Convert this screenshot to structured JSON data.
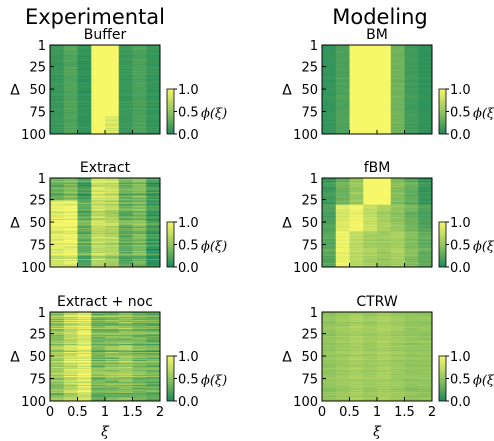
{
  "column_titles": [
    "Experimental",
    "Modeling"
  ],
  "colors": {
    "low": "#1e8a5a",
    "mid": "#93c55e",
    "high": "#f7f76a",
    "frame": "#000000"
  },
  "y_tick_labels": [
    "1",
    "25",
    "50",
    "75",
    "100"
  ],
  "y_axis_label": "Δ",
  "x_tick_labels": [
    "0",
    "0.5",
    "1",
    "1.5",
    "2"
  ],
  "x_axis_label": "ξ",
  "colorbar": {
    "tick_labels": [
      "1.0",
      "0.5",
      "0.0"
    ],
    "label": "ϕ(ξ)"
  },
  "chart_data": [
    {
      "type": "heatmap",
      "title": "Buffer",
      "x_bins": [
        0.125,
        0.375,
        0.625,
        0.875,
        1.125,
        1.375,
        1.625,
        1.875
      ],
      "xlim": [
        0,
        2
      ],
      "ylim": [
        1,
        100
      ],
      "clim": [
        0,
        1
      ],
      "bands": [
        {
          "rows": [
            1,
            100
          ],
          "values": [
            0.12,
            0.22,
            0.08,
            1.0,
            1.0,
            0.12,
            0.2,
            0.1
          ]
        }
      ],
      "features": "Bright columns near xi 0.5–1.25 with faint stripes near the bottom"
    },
    {
      "type": "heatmap",
      "title": "Extract",
      "x_bins": [
        0.125,
        0.375,
        0.625,
        0.875,
        1.125,
        1.375,
        1.625,
        1.875
      ],
      "xlim": [
        0,
        2
      ],
      "ylim": [
        1,
        100
      ],
      "clim": [
        0,
        1
      ],
      "bands": [
        {
          "rows": [
            1,
            25
          ],
          "values": [
            0.35,
            0.45,
            0.2,
            0.85,
            0.8,
            0.35,
            0.45,
            0.15
          ]
        },
        {
          "rows": [
            26,
            100
          ],
          "values": [
            0.9,
            0.95,
            0.3,
            0.7,
            0.65,
            0.3,
            0.4,
            0.12
          ]
        }
      ],
      "features": "Many horizontal stripes"
    },
    {
      "type": "heatmap",
      "title": "Extract + noc",
      "x_bins": [
        0.125,
        0.375,
        0.625,
        0.875,
        1.125,
        1.375,
        1.625,
        1.875
      ],
      "xlim": [
        0,
        2
      ],
      "ylim": [
        1,
        100
      ],
      "clim": [
        0,
        1
      ],
      "bands": [
        {
          "rows": [
            1,
            100
          ],
          "values": [
            0.55,
            0.75,
            0.9,
            0.4,
            0.45,
            0.5,
            0.4,
            0.35
          ]
        }
      ],
      "features": "Dense horizontal stripes"
    },
    {
      "type": "heatmap",
      "title": "BM",
      "x_bins": [
        0.125,
        0.375,
        0.625,
        0.875,
        1.125,
        1.375,
        1.625,
        1.875
      ],
      "xlim": [
        0,
        2
      ],
      "ylim": [
        1,
        100
      ],
      "clim": [
        0,
        1
      ],
      "bands": [
        {
          "rows": [
            1,
            100
          ],
          "values": [
            0.1,
            0.2,
            1.0,
            1.0,
            1.0,
            0.35,
            0.15,
            0.08
          ]
        }
      ],
      "features": "Wide bright band near xi 0.6–1.4"
    },
    {
      "type": "heatmap",
      "title": "fBM",
      "x_bins": [
        0.125,
        0.375,
        0.625,
        0.875,
        1.125,
        1.375,
        1.625,
        1.875
      ],
      "xlim": [
        0,
        2
      ],
      "ylim": [
        1,
        100
      ],
      "clim": [
        0,
        1
      ],
      "bands": [
        {
          "rows": [
            1,
            30
          ],
          "values": [
            0.15,
            0.35,
            0.55,
            1.0,
            1.0,
            0.45,
            0.3,
            0.12
          ]
        },
        {
          "rows": [
            31,
            60
          ],
          "values": [
            0.2,
            0.85,
            0.95,
            0.75,
            0.6,
            0.5,
            0.35,
            0.2
          ]
        },
        {
          "rows": [
            61,
            100
          ],
          "values": [
            0.25,
            0.95,
            0.7,
            0.6,
            0.55,
            0.6,
            0.45,
            0.3
          ]
        }
      ],
      "features": "Blocky regions"
    },
    {
      "type": "heatmap",
      "title": "CTRW",
      "x_bins": [
        0.125,
        0.375,
        0.625,
        0.875,
        1.125,
        1.375,
        1.625,
        1.875
      ],
      "xlim": [
        0,
        2
      ],
      "ylim": [
        1,
        100
      ],
      "clim": [
        0,
        1
      ],
      "bands": [
        {
          "rows": [
            1,
            100
          ],
          "values": [
            0.5,
            0.55,
            0.6,
            0.55,
            0.6,
            0.55,
            0.5,
            0.5
          ]
        }
      ],
      "features": "Nearly uniform medium with fine stripes"
    }
  ]
}
